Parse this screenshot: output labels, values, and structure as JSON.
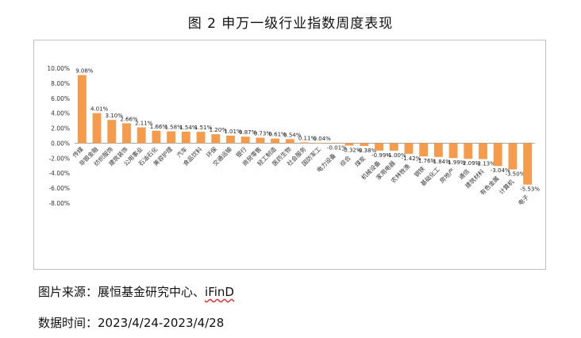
{
  "figure": {
    "title": "图 2  申万一级行业指数周度表现",
    "source_label": "图片来源：",
    "source_text": "展恒基金研究中心、",
    "source_brand": "iFinD",
    "date_label": "数据时间：",
    "date_text": "2023/4/24-2023/4/28"
  },
  "chart_data": {
    "type": "bar",
    "title": "",
    "xlabel": "",
    "ylabel": "",
    "ylim": [
      -8,
      10
    ],
    "yticks": [
      10,
      8,
      6,
      4,
      2,
      0,
      -2,
      -4,
      -6,
      -8
    ],
    "ytick_labels": [
      "10.00%",
      "8.00%",
      "6.00%",
      "4.00%",
      "2.00%",
      "0.00%",
      "-2.00%",
      "-4.00%",
      "-6.00%",
      "-8.00%"
    ],
    "bar_color": "#F59B4C",
    "categories": [
      "传媒",
      "非银金融",
      "纺织服饰",
      "建筑装饰",
      "公用事业",
      "石油石化",
      "美容护理",
      "汽车",
      "食品饮料",
      "环保",
      "交通运输",
      "银行",
      "商贸零售",
      "轻工制造",
      "医药生物",
      "社会服务",
      "国防军工",
      "电力设备",
      "综合",
      "煤炭",
      "机械设备",
      "家用电器",
      "农林牧渔",
      "钢铁",
      "基础化工",
      "房地产",
      "通信",
      "建筑材料",
      "有色金属",
      "计算机",
      "电子"
    ],
    "values": [
      9.08,
      4.01,
      3.1,
      2.66,
      2.11,
      1.66,
      1.58,
      1.54,
      1.51,
      1.2,
      1.01,
      0.87,
      0.73,
      0.61,
      0.54,
      0.11,
      0.04,
      -0.01,
      -0.32,
      -0.38,
      -0.99,
      -1.0,
      -1.42,
      -1.76,
      -1.84,
      -1.99,
      -2.09,
      -2.13,
      -3.04,
      -3.5,
      -5.53
    ],
    "data_labels": [
      "9.08%",
      "4.01%",
      "3.10%",
      "2.66%",
      "2.11%",
      "1.66%",
      "1.58%",
      "1.54%",
      "1.51%",
      "1.20%",
      "1.01%",
      "0.87%",
      "0.73%",
      "0.61%",
      "0.54%",
      "0.11%",
      "0.04%",
      "-0.01%",
      "-0.32%",
      "-0.38%",
      "-0.99%",
      "-1.00%",
      "-1.42%",
      "-1.76%",
      "-1.84%",
      "-1.99%",
      "-2.09%",
      "-2.13%",
      "-3.04%",
      "-3.50%",
      "-5.53%"
    ]
  }
}
